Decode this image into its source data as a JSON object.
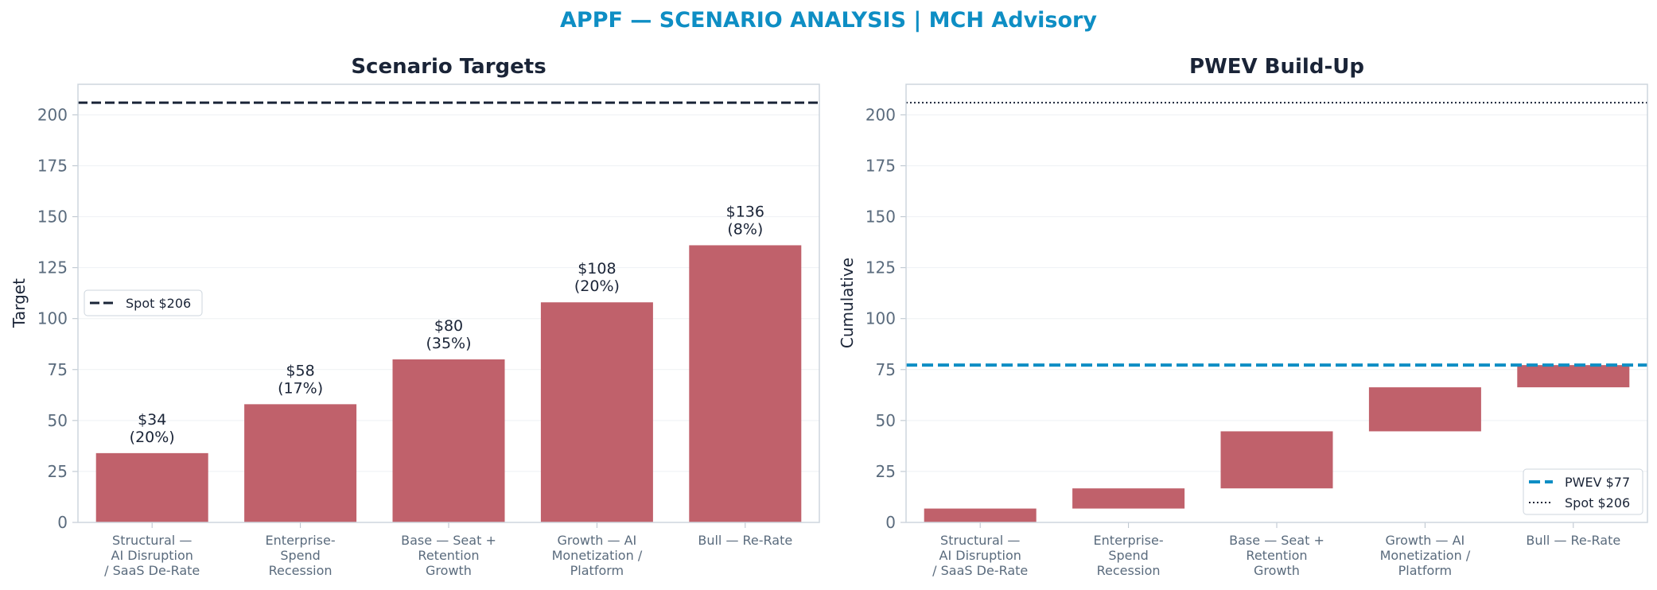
{
  "figure_title": "APPF — SCENARIO ANALYSIS | MCH Advisory",
  "colors": {
    "title": "#0e8ec4",
    "bar": "#c0616b",
    "spot_line": "#1a2437",
    "pwev_line": "#0e8ec4",
    "axis_text": "#5a6b7d",
    "label_text": "#1a2437"
  },
  "chart_data": [
    {
      "type": "bar",
      "title": "Scenario Targets",
      "ylabel": "Target",
      "xlabel": "",
      "ylim": [
        0,
        215
      ],
      "yticks": [
        0,
        25,
        50,
        75,
        100,
        125,
        150,
        175,
        200
      ],
      "grid": "y",
      "categories": [
        [
          "Structural —",
          "AI Disruption",
          "/ SaaS De-Rate"
        ],
        [
          "Enterprise-",
          "Spend",
          "Recession"
        ],
        [
          "Base — Seat +",
          "Retention",
          "Growth"
        ],
        [
          "Growth — AI",
          "Monetization /",
          "Platform"
        ],
        [
          "Bull — Re-Rate"
        ]
      ],
      "values": [
        34,
        58,
        80,
        108,
        136
      ],
      "data_labels": [
        [
          "$34",
          "(20%)"
        ],
        [
          "$58",
          "(17%)"
        ],
        [
          "$80",
          "(35%)"
        ],
        [
          "$108",
          "(20%)"
        ],
        [
          "$136",
          "(8%)"
        ]
      ],
      "reference_lines": [
        {
          "name": "Spot $206",
          "value": 206,
          "style": "dashed"
        }
      ],
      "legend": {
        "placement": "center-left",
        "entries": [
          "Spot $206"
        ]
      }
    },
    {
      "type": "bar",
      "subtype": "waterfall",
      "title": "PWEV Build-Up",
      "ylabel": "Cumulative",
      "xlabel": "",
      "ylim": [
        0,
        215
      ],
      "yticks": [
        0,
        25,
        50,
        75,
        100,
        125,
        150,
        175,
        200
      ],
      "grid": "y",
      "categories": [
        [
          "Structural —",
          "AI Disruption",
          "/ SaaS De-Rate"
        ],
        [
          "Enterprise-",
          "Spend",
          "Recession"
        ],
        [
          "Base — Seat +",
          "Retention",
          "Growth"
        ],
        [
          "Growth — AI",
          "Monetization /",
          "Platform"
        ],
        [
          "Bull — Re-Rate"
        ]
      ],
      "bars": [
        {
          "start": 0,
          "end": 6.8
        },
        {
          "start": 6.8,
          "end": 16.7
        },
        {
          "start": 16.7,
          "end": 44.7
        },
        {
          "start": 44.7,
          "end": 66.3
        },
        {
          "start": 66.3,
          "end": 77.2
        }
      ],
      "reference_lines": [
        {
          "name": "PWEV $77",
          "value": 77.2,
          "style": "dashed"
        },
        {
          "name": "Spot $206",
          "value": 206,
          "style": "dotted"
        }
      ],
      "legend": {
        "placement": "bottom-right",
        "entries": [
          "PWEV $77",
          "Spot $206"
        ]
      }
    }
  ]
}
